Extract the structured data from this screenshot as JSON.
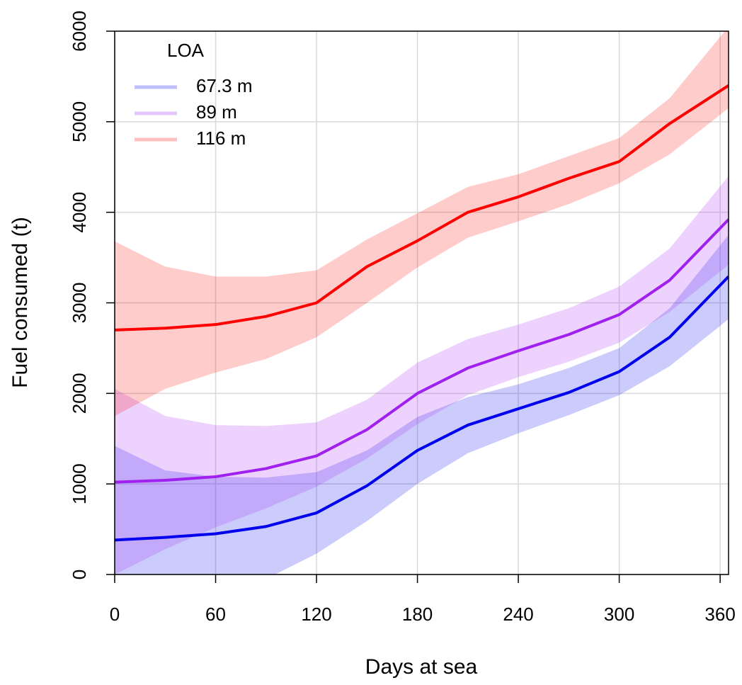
{
  "chart_data": {
    "type": "line",
    "xlabel": "Days at sea",
    "ylabel": "Fuel consumed (t)",
    "legend_title": "LOA",
    "legend": "top-left",
    "grid": true,
    "xlim": [
      0,
      365
    ],
    "xticks": [
      0,
      60,
      120,
      180,
      240,
      300,
      360
    ],
    "ylim": [
      0,
      6000
    ],
    "yticks": [
      0,
      1000,
      2000,
      3000,
      4000,
      5000,
      6000
    ],
    "x": [
      0,
      30,
      60,
      90,
      120,
      150,
      180,
      210,
      240,
      270,
      300,
      330,
      365
    ],
    "series": [
      {
        "name": "67.3 m",
        "color": "#0000ee",
        "values": [
          380,
          410,
          450,
          530,
          680,
          980,
          1370,
          1650,
          1830,
          2010,
          2240,
          2620,
          3290
        ],
        "lower": [
          0,
          -150,
          -200,
          -50,
          230,
          590,
          1000,
          1340,
          1560,
          1760,
          1980,
          2300,
          2820
        ],
        "upper": [
          1420,
          1150,
          1080,
          1070,
          1130,
          1370,
          1740,
          1960,
          2100,
          2280,
          2500,
          2940,
          3750
        ]
      },
      {
        "name": "89 m",
        "color": "#a020f0",
        "values": [
          1020,
          1040,
          1080,
          1170,
          1310,
          1600,
          2000,
          2280,
          2470,
          2650,
          2870,
          3250,
          3920
        ],
        "lower": [
          0,
          280,
          520,
          730,
          970,
          1280,
          1660,
          1980,
          2180,
          2350,
          2560,
          2900,
          3420
        ],
        "upper": [
          2050,
          1750,
          1650,
          1640,
          1680,
          1930,
          2340,
          2600,
          2760,
          2940,
          3180,
          3600,
          4400
        ]
      },
      {
        "name": "116 m",
        "color": "#ff0000",
        "values": [
          2700,
          2720,
          2760,
          2850,
          3000,
          3400,
          3685,
          4000,
          4170,
          4375,
          4560,
          4980,
          5400
        ],
        "lower": [
          1750,
          2050,
          2230,
          2380,
          2620,
          3000,
          3390,
          3720,
          3900,
          4090,
          4320,
          4640,
          5150
        ],
        "upper": [
          3680,
          3400,
          3290,
          3290,
          3360,
          3700,
          3990,
          4280,
          4420,
          4620,
          4820,
          5260,
          6050
        ]
      }
    ]
  }
}
